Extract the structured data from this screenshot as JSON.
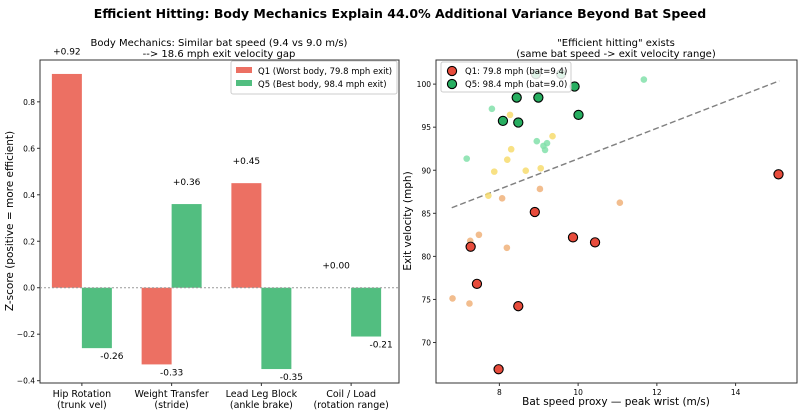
{
  "suptitle": "Efficient Hitting: Body Mechanics Explain 44.0% Additional Variance Beyond Bat Speed",
  "chart_data": [
    {
      "type": "bar",
      "title": [
        "Body Mechanics: Similar bat speed (9.4 vs 9.0 m/s)",
        "--> 18.6 mph exit velocity gap"
      ],
      "xlabel": "",
      "ylabel": "Z-score (positive = more efficient)",
      "ylim": [
        -0.41,
        0.98
      ],
      "yticks": [
        -0.4,
        -0.2,
        0.0,
        0.2,
        0.4,
        0.6,
        0.8
      ],
      "categories": [
        [
          "Hip Rotation",
          "(trunk vel)"
        ],
        [
          "Weight Transfer",
          "(stride)"
        ],
        [
          "Lead Leg Block",
          "(ankle brake)"
        ],
        [
          "Coil / Load",
          "(rotation range)"
        ]
      ],
      "series": [
        {
          "name": "Q1 (Worst body, 79.8 mph exit)",
          "color": "#ec7063",
          "values": [
            0.92,
            -0.33,
            0.45,
            0.0
          ],
          "labels": [
            "+0.92",
            "-0.33",
            "+0.45",
            "+0.00"
          ]
        },
        {
          "name": "Q5 (Best body, 98.4 mph exit)",
          "color": "#52be80",
          "values": [
            -0.26,
            0.36,
            -0.35,
            -0.21
          ],
          "labels": [
            "-0.26",
            "+0.36",
            "-0.35",
            "-0.21"
          ]
        }
      ],
      "reference_line": {
        "y": 0,
        "style": "dotted",
        "color": "#999999"
      },
      "legend": "top-right",
      "grid": false
    },
    {
      "type": "scatter",
      "title": [
        "\"Efficient hitting\" exists",
        "(same bat speed -> exit velocity range)"
      ],
      "xlabel": "Bat speed proxy — peak wrist (m/s)",
      "ylabel": "Exit velocity (mph)",
      "xlim": [
        6.39,
        15.56
      ],
      "ylim": [
        65.3,
        102.8
      ],
      "xticks": [
        8,
        10,
        12,
        14
      ],
      "yticks": [
        70,
        75,
        80,
        85,
        90,
        95,
        100
      ],
      "legend": "top-left",
      "grid": false,
      "series": [
        {
          "name": "",
          "color": "#f0b27a",
          "size": "small",
          "points": [
            [
              8.07,
              86.74
            ],
            [
              9.03,
              87.83
            ],
            [
              11.06,
              86.23
            ],
            [
              7.26,
              81.81
            ],
            [
              7.48,
              82.51
            ],
            [
              8.19,
              81.0
            ],
            [
              6.81,
              75.12
            ],
            [
              7.24,
              74.53
            ]
          ]
        },
        {
          "name": "",
          "color": "#f7dc6f",
          "size": "small",
          "points": [
            [
              8.27,
              96.43
            ],
            [
              8.3,
              92.44
            ],
            [
              8.2,
              91.23
            ],
            [
              9.35,
              93.95
            ],
            [
              7.87,
              89.84
            ],
            [
              8.67,
              89.95
            ],
            [
              9.05,
              90.23
            ],
            [
              7.72,
              87.05
            ]
          ]
        },
        {
          "name": "",
          "color": "#82e0aa",
          "size": "small",
          "points": [
            [
              7.81,
              97.13
            ],
            [
              7.17,
              91.35
            ],
            [
              8.95,
              93.37
            ],
            [
              9.12,
              92.83
            ],
            [
              9.21,
              93.14
            ],
            [
              9.16,
              92.36
            ],
            [
              11.67,
              100.53
            ]
          ]
        },
        {
          "name": "Q1: 79.8 mph (bat=9.4)",
          "color": "#e74c3c",
          "size": "large",
          "points": [
            [
              8.9,
              85.15
            ],
            [
              15.09,
              89.53
            ],
            [
              7.27,
              81.12
            ],
            [
              9.87,
              82.21
            ],
            [
              10.43,
              81.63
            ],
            [
              7.43,
              76.81
            ],
            [
              8.48,
              74.22
            ],
            [
              7.98,
              66.9
            ]
          ]
        },
        {
          "name": "Q5: 98.4 mph (bat=9.0)",
          "color": "#27ae60",
          "size": "large",
          "points": [
            [
              8.44,
              98.44
            ],
            [
              8.99,
              98.44
            ],
            [
              8.09,
              95.73
            ],
            [
              8.48,
              95.54
            ],
            [
              9.91,
              99.72
            ],
            [
              10.01,
              96.43
            ],
            [
              8.93,
              101.16
            ],
            [
              9.57,
              101.16
            ]
          ]
        }
      ],
      "trend_line": {
        "x": [
          6.79,
          15.11
        ],
        "y": [
          85.65,
          100.38
        ],
        "style": "dashed",
        "color": "#808080"
      }
    }
  ]
}
